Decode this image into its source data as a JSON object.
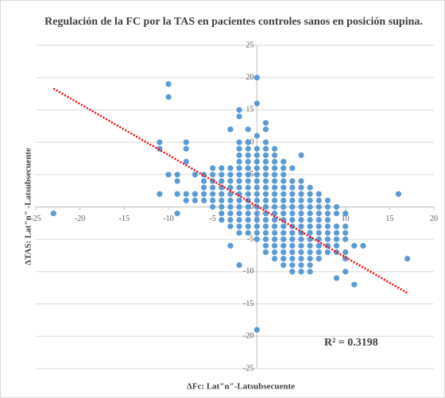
{
  "chart_data": {
    "type": "scatter",
    "title": "Regulación de la FC por la TAS en pacientes controles sanos en posición supina.",
    "x_label": "ΔFc: Lat\"n\"-Latsubsecuente",
    "y_label": "ΔTAS: Lat\"n\" -Latsubsecuente",
    "annotation": "R² = 0.3198",
    "xlim": [
      -25,
      20
    ],
    "xticks": [
      -25,
      -20,
      -15,
      -10,
      -5,
      0,
      5,
      10,
      15,
      20
    ],
    "ylim": [
      -25,
      25
    ],
    "yticks": [
      -25,
      -20,
      -15,
      -10,
      -5,
      0,
      5,
      10,
      15,
      20,
      25
    ],
    "grid": true,
    "series": [
      {
        "color": "#5b9bd5",
        "x": [
          -23,
          -11,
          -11,
          -11,
          -10,
          -10,
          -10,
          -9,
          -9,
          -9,
          -9,
          -8,
          -8,
          -8,
          -8,
          -8,
          -7,
          -7,
          -7,
          -6,
          -6,
          -6,
          -6,
          -6,
          -5,
          -5,
          -5,
          -5,
          -5,
          -5,
          -5,
          -4,
          -4,
          -4,
          -4,
          -4,
          -4,
          -4,
          -4,
          -4,
          -3,
          -3,
          -3,
          -3,
          -3,
          -3,
          -3,
          -3,
          -3,
          -3,
          -3,
          -3,
          -2,
          -2,
          -2,
          -2,
          -2,
          -2,
          -2,
          -2,
          -2,
          -2,
          -2,
          -2,
          -2,
          -2,
          -2,
          -2,
          -2,
          -2,
          -1,
          -1,
          -1,
          -1,
          -1,
          -1,
          -1,
          -1,
          -1,
          -1,
          -1,
          -1,
          -1,
          -1,
          -1,
          -1,
          0,
          0,
          0,
          0,
          0,
          0,
          0,
          0,
          0,
          0,
          0,
          0,
          0,
          0,
          0,
          0,
          0,
          0,
          0,
          1,
          1,
          1,
          1,
          1,
          1,
          1,
          1,
          1,
          1,
          1,
          1,
          1,
          1,
          1,
          1,
          1,
          1,
          1,
          1,
          2,
          2,
          2,
          2,
          2,
          2,
          2,
          2,
          2,
          2,
          2,
          2,
          2,
          2,
          2,
          2,
          2,
          2,
          3,
          3,
          3,
          3,
          3,
          3,
          3,
          3,
          3,
          3,
          3,
          3,
          3,
          3,
          3,
          3,
          3,
          4,
          4,
          4,
          4,
          4,
          4,
          4,
          4,
          4,
          4,
          4,
          4,
          4,
          4,
          4,
          4,
          5,
          5,
          5,
          5,
          5,
          5,
          5,
          5,
          5,
          5,
          5,
          5,
          5,
          5,
          5,
          5,
          6,
          6,
          6,
          6,
          6,
          6,
          6,
          6,
          6,
          6,
          6,
          6,
          6,
          6,
          7,
          7,
          7,
          7,
          7,
          7,
          7,
          7,
          7,
          7,
          7,
          8,
          8,
          8,
          8,
          8,
          8,
          8,
          8,
          8,
          9,
          9,
          9,
          9,
          9,
          9,
          9,
          9,
          10,
          10,
          10,
          10,
          10,
          10,
          10,
          11,
          11,
          12,
          16,
          17
        ],
        "values": [
          -1,
          10,
          9,
          2,
          19,
          17,
          5,
          5,
          4,
          2,
          -1,
          10,
          9,
          7,
          2,
          1,
          5,
          2,
          1,
          5,
          4,
          3,
          2,
          1,
          6,
          5,
          4,
          3,
          2,
          1,
          0,
          6,
          5,
          4,
          3,
          2,
          1,
          0,
          -1,
          -2,
          12,
          6,
          5,
          4,
          3,
          2,
          1,
          0,
          -1,
          -2,
          -3,
          -6,
          15,
          14,
          10,
          9,
          8,
          7,
          6,
          5,
          4,
          3,
          2,
          1,
          0,
          -1,
          -2,
          -3,
          -4,
          -9,
          12,
          10,
          9,
          8,
          7,
          6,
          5,
          4,
          3,
          2,
          1,
          0,
          -1,
          -2,
          -3,
          -4,
          20,
          16,
          11,
          9,
          8,
          7,
          6,
          5,
          4,
          3,
          2,
          1,
          0,
          -1,
          -2,
          -3,
          -4,
          -5,
          -19,
          13,
          12,
          10,
          9,
          8,
          7,
          6,
          5,
          4,
          3,
          2,
          1,
          0,
          -1,
          -2,
          -3,
          -4,
          -5,
          -6,
          -7,
          9,
          8,
          7,
          6,
          5,
          4,
          3,
          2,
          1,
          0,
          -1,
          -2,
          -3,
          -4,
          -5,
          -6,
          -7,
          -8,
          7,
          6,
          5,
          4,
          3,
          2,
          1,
          0,
          -1,
          -2,
          -3,
          -4,
          -5,
          -6,
          -7,
          -8,
          -9,
          6,
          4,
          3,
          2,
          1,
          0,
          -1,
          -2,
          -3,
          -4,
          -5,
          -6,
          -7,
          -8,
          -9,
          -10,
          8,
          4,
          3,
          2,
          1,
          0,
          -1,
          -2,
          -3,
          -4,
          -5,
          -6,
          -7,
          -8,
          -9,
          -10,
          3,
          2,
          1,
          0,
          -1,
          -2,
          -3,
          -4,
          -5,
          -6,
          -7,
          -8,
          -9,
          -10,
          2,
          1,
          0,
          -1,
          -2,
          -3,
          -4,
          -5,
          -6,
          -7,
          -8,
          1,
          0,
          -1,
          -2,
          -3,
          -4,
          -5,
          -6,
          -7,
          0,
          -1,
          -3,
          -4,
          -5,
          -6,
          -7,
          -11,
          -1,
          -3,
          -4,
          -5,
          -7,
          -8,
          -10,
          -6,
          -12,
          -6,
          2,
          -8
        ]
      }
    ],
    "trendline": {
      "color": "#ff0000",
      "x": [
        -23,
        17
      ],
      "values": [
        18.3,
        -13.3
      ]
    }
  }
}
